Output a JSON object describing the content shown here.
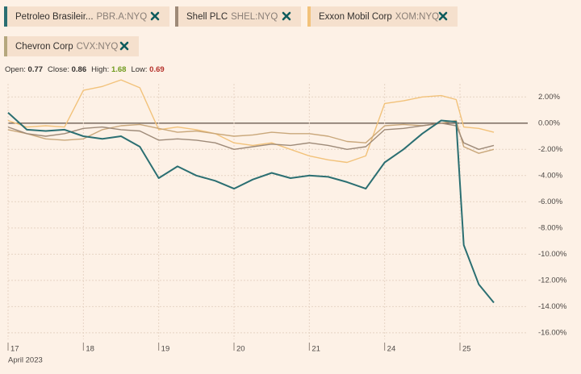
{
  "chart_data": {
    "type": "line",
    "legend": [
      {
        "name": "Petroleo Brasileir...",
        "symbol": "PBR.A:NYQ"
      },
      {
        "name": "Shell PLC",
        "symbol": "SHEL:NYQ"
      },
      {
        "name": "Exxon Mobil Corp",
        "symbol": "XOM:NYQ"
      },
      {
        "name": "Chevron Corp",
        "symbol": "CVX:NYQ"
      }
    ],
    "stats": [
      {
        "label": "Open:",
        "value": 0.77,
        "color": "#33302e"
      },
      {
        "label": "Close:",
        "value": 0.86,
        "color": "#33302e"
      },
      {
        "label": "High:",
        "value": 1.68,
        "color": "#6e9a1c"
      },
      {
        "label": "Low:",
        "value": 0.69,
        "color": "#b5302a"
      }
    ],
    "x_sublabel": "April 2023",
    "x": [
      0,
      0.25,
      0.5,
      0.75,
      1,
      1.25,
      1.5,
      1.75,
      2,
      2.25,
      2.5,
      2.75,
      3,
      3.25,
      3.5,
      3.75,
      4,
      4.25,
      4.5,
      4.75,
      5,
      5.25,
      5.5,
      5.75,
      5.95,
      6.05,
      6.25,
      6.45
    ],
    "series": [
      {
        "name": "Exxon Mobil Corp",
        "color": "#f2c27a",
        "values": [
          0.2,
          -0.3,
          -0.2,
          -0.3,
          2.5,
          2.8,
          3.3,
          2.7,
          -0.5,
          -0.3,
          -0.5,
          -0.8,
          -1.5,
          -1.7,
          -1.5,
          -2.0,
          -2.5,
          -2.8,
          -3.0,
          -2.5,
          1.5,
          1.7,
          2.0,
          2.1,
          1.8,
          -0.3,
          -0.4,
          -0.7
        ]
      },
      {
        "name": "Chevron Corp",
        "color": "#c9a77a",
        "values": [
          -0.5,
          -0.8,
          -1.2,
          -1.3,
          -1.2,
          -0.5,
          -0.2,
          -0.1,
          -0.4,
          -0.7,
          -0.6,
          -0.8,
          -1.0,
          -0.9,
          -0.7,
          -0.8,
          -0.8,
          -1.0,
          -1.4,
          -1.5,
          -0.2,
          -0.1,
          -0.2,
          0.0,
          0.2,
          -1.8,
          -2.3,
          -2.0
        ]
      },
      {
        "name": "Shell PLC",
        "color": "#9e8a78",
        "values": [
          -0.3,
          -0.8,
          -1.0,
          -0.8,
          -0.4,
          -0.3,
          -0.5,
          -0.6,
          -1.3,
          -1.2,
          -1.3,
          -1.5,
          -2.0,
          -1.8,
          -1.6,
          -1.7,
          -1.5,
          -1.7,
          -2.0,
          -1.8,
          -0.5,
          -0.4,
          -0.2,
          0.0,
          -0.2,
          -1.5,
          -2.0,
          -1.7
        ]
      },
      {
        "name": "Petroleo Brasileir...",
        "color": "#2b6f72",
        "values": [
          0.8,
          -0.5,
          -0.6,
          -0.5,
          -1.0,
          -1.2,
          -1.0,
          -1.8,
          -4.2,
          -3.3,
          -4.0,
          -4.4,
          -5.0,
          -4.3,
          -3.8,
          -4.2,
          -4.0,
          -4.1,
          -4.5,
          -5.0,
          -3.0,
          -2.0,
          -0.8,
          0.2,
          0.1,
          -9.3,
          -12.3,
          -13.7
        ]
      }
    ],
    "legend_colors": [
      "#2b6f72",
      "#9e8a78",
      "#f2c27a",
      "#b5a77e"
    ],
    "xlim": [
      0,
      6.9
    ],
    "xticks": [
      {
        "value": 0,
        "label": "17"
      },
      {
        "value": 1,
        "label": "18"
      },
      {
        "value": 2,
        "label": "19"
      },
      {
        "value": 3,
        "label": "20"
      },
      {
        "value": 4,
        "label": "21"
      },
      {
        "value": 5,
        "label": "24"
      },
      {
        "value": 6,
        "label": "25"
      }
    ],
    "ylim": [
      -16.5,
      3
    ],
    "yticks": [
      {
        "value": 2,
        "label": "2.00%"
      },
      {
        "value": 0,
        "label": "0.00%"
      },
      {
        "value": -2,
        "label": "-2.00%"
      },
      {
        "value": -4,
        "label": "-4.00%"
      },
      {
        "value": -6,
        "label": "-6.00%"
      },
      {
        "value": -8,
        "label": "-8.00%"
      },
      {
        "value": -10,
        "label": "-10.00%"
      },
      {
        "value": -12,
        "label": "-12.00%"
      },
      {
        "value": -14,
        "label": "-14.00%"
      },
      {
        "value": -16,
        "label": "-16.00%"
      }
    ],
    "grid": true
  }
}
